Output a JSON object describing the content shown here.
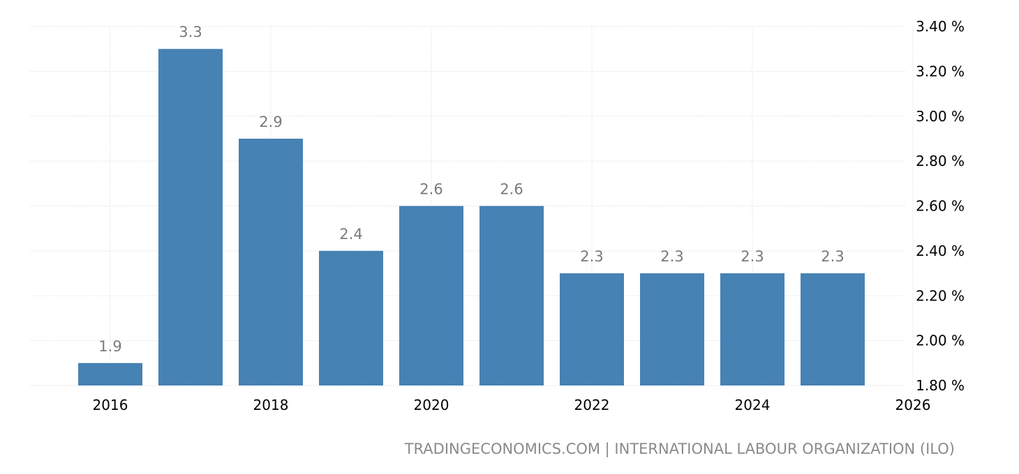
{
  "chart_data": {
    "type": "bar",
    "categories": [
      2016,
      2017,
      2018,
      2019,
      2020,
      2021,
      2022,
      2023,
      2024,
      2025
    ],
    "values": [
      1.9,
      3.3,
      2.9,
      2.4,
      2.6,
      2.6,
      2.3,
      2.3,
      2.3,
      2.3
    ],
    "value_labels": [
      "1.9",
      "3.3",
      "2.9",
      "2.4",
      "2.6",
      "2.6",
      "2.3",
      "2.3",
      "2.3",
      "2.3"
    ],
    "title": "",
    "xlabel": "",
    "ylabel": "",
    "xlim": [
      2015.5,
      2026
    ],
    "ylim": [
      1.8,
      3.4
    ],
    "x_ticks": [
      "2016",
      "2018",
      "2020",
      "2022",
      "2024",
      "2026"
    ],
    "y_ticks": [
      "1.80 %",
      "2.00 %",
      "2.20 %",
      "2.40 %",
      "2.60 %",
      "2.80 %",
      "3.00 %",
      "3.20 %",
      "3.40 %"
    ],
    "y_axis_position": "right",
    "grid": true,
    "legend": "none",
    "bar_color": "#4682b4",
    "source": "TRADINGECONOMICS.COM | INTERNATIONAL LABOUR ORGANIZATION (ILO)"
  }
}
